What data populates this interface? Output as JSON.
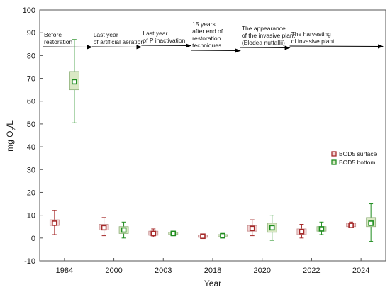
{
  "chart_data": {
    "type": "box",
    "title": "",
    "xlabel": "Year",
    "ylabel_main": "mg O",
    "ylabel_sub": "2",
    "ylabel_tail": "/L",
    "ylim": [
      -10,
      100
    ],
    "yticks": [
      -10,
      0,
      10,
      20,
      30,
      40,
      50,
      60,
      70,
      80,
      90,
      100
    ],
    "categories": [
      "1984",
      "2000",
      "2003",
      "2018",
      "2020",
      "2022",
      "2024"
    ],
    "grid": false,
    "legend_position": "right",
    "series": [
      {
        "name": "BOD5 surface",
        "color": "#a52a2a",
        "fill": "#f3d5d5",
        "boxes": [
          {
            "whisker_low": 1.5,
            "q1": 5.5,
            "median": 6.5,
            "q3": 8,
            "whisker_high": 12
          },
          {
            "whisker_low": 1,
            "q1": 3.5,
            "median": 4.5,
            "q3": 6,
            "whisker_high": 9
          },
          {
            "whisker_low": 0.5,
            "q1": 1.2,
            "median": 2,
            "q3": 3,
            "whisker_high": 4
          },
          {
            "whisker_low": 0,
            "q1": 0.3,
            "median": 0.8,
            "q3": 1.3,
            "whisker_high": 1.5
          },
          {
            "whisker_low": 1,
            "q1": 3,
            "median": 4.2,
            "q3": 5.5,
            "whisker_high": 8
          },
          {
            "whisker_low": 0,
            "q1": 1.5,
            "median": 2.8,
            "q3": 4,
            "whisker_high": 6
          },
          {
            "whisker_low": 4.5,
            "q1": 5,
            "median": 5.5,
            "q3": 6.5,
            "whisker_high": 7
          }
        ]
      },
      {
        "name": "BOD5 bottom",
        "color": "#1e8c1e",
        "fill": "#d9e8c4",
        "boxes": [
          {
            "whisker_low": 50.5,
            "q1": 65,
            "median": 68.5,
            "q3": 73,
            "whisker_high": 87
          },
          {
            "whisker_low": 0,
            "q1": 2,
            "median": 3.5,
            "q3": 5,
            "whisker_high": 7
          },
          {
            "whisker_low": 1,
            "q1": 1.5,
            "median": 2,
            "q3": 2.5,
            "whisker_high": 3
          },
          {
            "whisker_low": 0.5,
            "q1": 0.8,
            "median": 1,
            "q3": 1.5,
            "whisker_high": 2
          },
          {
            "whisker_low": -1,
            "q1": 2.5,
            "median": 4.5,
            "q3": 6.5,
            "whisker_high": 10
          },
          {
            "whisker_low": 1.5,
            "q1": 3,
            "median": 4,
            "q3": 5,
            "whisker_high": 7
          },
          {
            "whisker_low": -1.5,
            "q1": 5,
            "median": 6.5,
            "q3": 9,
            "whisker_high": 15
          }
        ]
      }
    ],
    "annotations": [
      {
        "lines": [
          "Before",
          "restoration"
        ],
        "from": "1984",
        "to": "2000"
      },
      {
        "lines": [
          "Last year",
          "of artificial aeration"
        ],
        "from": "2000",
        "to": "2003"
      },
      {
        "lines": [
          "Last year",
          "of P inactivation"
        ],
        "from": "2003",
        "to": "2018"
      },
      {
        "lines": [
          "15 years",
          "after end of",
          "restoration",
          "techniques"
        ],
        "from": "2018",
        "to": "2020"
      },
      {
        "lines": [
          "The appearance",
          "of the invasive plant",
          "(Elodea nuttallii)"
        ],
        "from": "2020",
        "to": "2022"
      },
      {
        "lines": [
          "The harvesting",
          "of invasive plant"
        ],
        "from": "2022",
        "to": "end"
      }
    ]
  }
}
